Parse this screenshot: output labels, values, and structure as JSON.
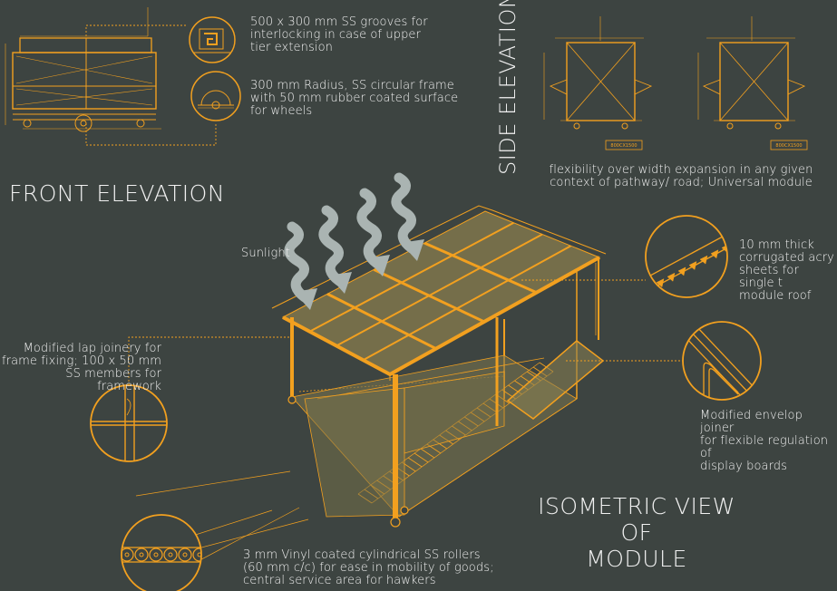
{
  "headings": {
    "front_elevation": "FRONT ELEVATION",
    "side_elevation": "SIDE ELEVATION",
    "isometric": "ISOMETRIC VIEW OF\nMODULE"
  },
  "notes": {
    "grooves": "500 x 300 mm SS grooves for\ninterlocking in case of upper\ntier extension",
    "circular_frame": "300 mm Radius, SS circular frame\nwith 50 mm rubber coated surface\nfor wheels",
    "flexibility": "flexibility over width expansion in any given\ncontext of pathway/ road; Universal module",
    "sunlight": "Sunlight",
    "acrylic": "10 mm thick\ncorrugated acry\nsheets for single t\nmodule roof",
    "lap_joinery": "Modified lap joinery for\nframe fixing; 100 x 50 mm\nSS members for framework",
    "envelop_joinery": "Modified envelop joiner\nfor flexible regulation of\ndisplay boards",
    "rollers": "3 mm Vinyl coated cylindrical SS rollers\n(60 mm c/c) for ease in mobility of goods;\ncentral service area for hawkers"
  },
  "dimension_tags": [
    "800CX1500",
    "800CX1500"
  ],
  "colors": {
    "background": "#3d4441",
    "accent": "#f2a01f",
    "text": "#f1f1f1",
    "arrow": "#aab4b2"
  }
}
